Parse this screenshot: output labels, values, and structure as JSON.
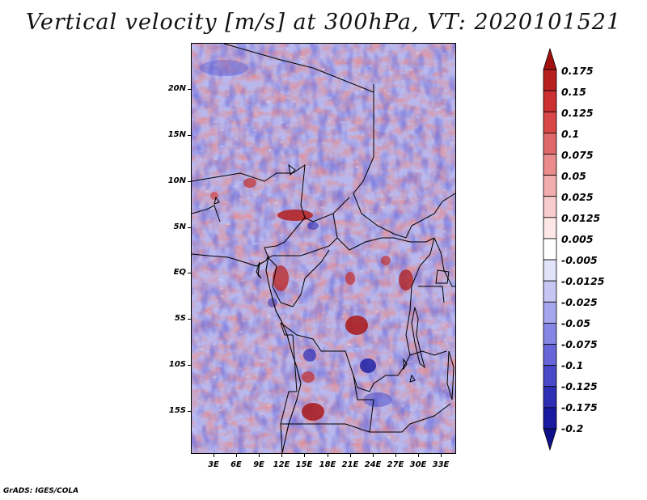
{
  "title": "Vertical velocity [m/s] at 300hPa, VT: 2020101521",
  "footer": "GrADS: IGES/COLA",
  "axes": {
    "lat_labels": [
      "20N",
      "15N",
      "10N",
      "5N",
      "EQ",
      "5S",
      "10S",
      "15S"
    ],
    "lat_values": [
      20,
      15,
      10,
      5,
      0,
      -5,
      -10,
      -15
    ],
    "lon_labels": [
      "3E",
      "6E",
      "9E",
      "12E",
      "15E",
      "18E",
      "21E",
      "24E",
      "27E",
      "30E",
      "33E"
    ],
    "lon_values": [
      3,
      6,
      9,
      12,
      15,
      18,
      21,
      24,
      27,
      30,
      33
    ],
    "lon_range": [
      0,
      35
    ],
    "lat_range": [
      -20,
      25
    ]
  },
  "colorbar": {
    "levels": [
      "0.175",
      "0.15",
      "0.125",
      "0.1",
      "0.075",
      "0.05",
      "0.025",
      "0.0125",
      "0.005",
      "-0.005",
      "-0.0125",
      "-0.025",
      "-0.05",
      "-0.075",
      "-0.1",
      "-0.125",
      "-0.175",
      "-0.2"
    ],
    "colors": [
      "#a01010",
      "#b82020",
      "#cc3030",
      "#d84848",
      "#e06868",
      "#ea8c8c",
      "#f2aeae",
      "#f8cccc",
      "#fde6e6",
      "#ffffff",
      "#e2e2fa",
      "#c6c6f4",
      "#a6a6ee",
      "#8686e4",
      "#6666d8",
      "#4848c8",
      "#2e2eb4",
      "#1a1aa0",
      "#10108a"
    ]
  }
}
